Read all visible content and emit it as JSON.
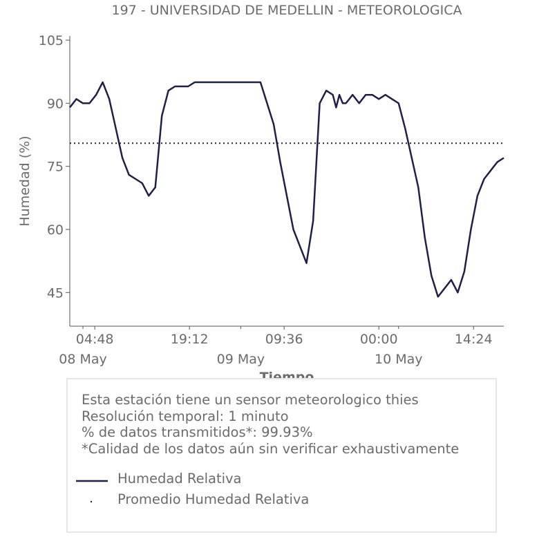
{
  "chart_data": {
    "type": "line",
    "title": "197 - UNIVERSIDAD DE MEDELLIN - METEOROLOGICA",
    "xlabel": "Tiempo",
    "ylabel": "Humedad (%)",
    "x_range": [
      "2024-05-08 01:00",
      "2024-05-10 19:00"
    ],
    "ylim": [
      37,
      106
    ],
    "yticks": [
      45,
      60,
      75,
      90,
      105
    ],
    "xticks": [
      {
        "time": "2024-05-08 04:48",
        "label": "04:48"
      },
      {
        "time": "2024-05-08 19:12",
        "label": "19:12"
      },
      {
        "time": "2024-05-09 09:36",
        "label": "09:36"
      },
      {
        "time": "2024-05-10 00:00",
        "label": "00:00"
      },
      {
        "time": "2024-05-10 14:24",
        "label": "14:24"
      }
    ],
    "date_ticks": [
      {
        "time": "2024-05-08 03:00",
        "label": "08 May"
      },
      {
        "time": "2024-05-09 03:00",
        "label": "09 May"
      },
      {
        "time": "2024-05-10 03:00",
        "label": "10 May"
      }
    ],
    "grid": false,
    "series": [
      {
        "name": "Humedad Relativa",
        "color": "#1f1f47",
        "style": "solid",
        "x": [
          "2024-05-08 01:00",
          "2024-05-08 02:00",
          "2024-05-08 03:00",
          "2024-05-08 04:00",
          "2024-05-08 05:00",
          "2024-05-08 06:00",
          "2024-05-08 07:00",
          "2024-05-08 08:00",
          "2024-05-08 09:00",
          "2024-05-08 10:00",
          "2024-05-08 11:00",
          "2024-05-08 12:00",
          "2024-05-08 13:00",
          "2024-05-08 14:00",
          "2024-05-08 15:00",
          "2024-05-08 16:00",
          "2024-05-08 17:00",
          "2024-05-08 18:00",
          "2024-05-08 19:00",
          "2024-05-08 20:00",
          "2024-05-08 22:00",
          "2024-05-09 00:00",
          "2024-05-09 02:00",
          "2024-05-09 04:00",
          "2024-05-09 06:00",
          "2024-05-09 08:00",
          "2024-05-09 09:00",
          "2024-05-09 10:00",
          "2024-05-09 11:00",
          "2024-05-09 12:00",
          "2024-05-09 13:00",
          "2024-05-09 14:00",
          "2024-05-09 15:00",
          "2024-05-09 16:00",
          "2024-05-09 17:00",
          "2024-05-09 17:30",
          "2024-05-09 18:00",
          "2024-05-09 18:30",
          "2024-05-09 19:00",
          "2024-05-09 20:00",
          "2024-05-09 21:00",
          "2024-05-09 22:00",
          "2024-05-09 23:00",
          "2024-05-10 00:00",
          "2024-05-10 01:00",
          "2024-05-10 02:00",
          "2024-05-10 03:00",
          "2024-05-10 04:00",
          "2024-05-10 05:00",
          "2024-05-10 06:00",
          "2024-05-10 07:00",
          "2024-05-10 08:00",
          "2024-05-10 09:00",
          "2024-05-10 10:00",
          "2024-05-10 11:00",
          "2024-05-10 12:00",
          "2024-05-10 13:00",
          "2024-05-10 14:00",
          "2024-05-10 15:00",
          "2024-05-10 16:00",
          "2024-05-10 17:00",
          "2024-05-10 18:00",
          "2024-05-10 19:00"
        ],
        "values": [
          89,
          91,
          90,
          90,
          92,
          95,
          91,
          84,
          77,
          73,
          72,
          71,
          68,
          70,
          87,
          93,
          94,
          94,
          94,
          95,
          95,
          95,
          95,
          95,
          95,
          85,
          76,
          68,
          60,
          56,
          52,
          62,
          90,
          93,
          92,
          89,
          92,
          90,
          90,
          92,
          90,
          92,
          92,
          91,
          92,
          91,
          90,
          84,
          77,
          70,
          58,
          49,
          44,
          46,
          48,
          45,
          50,
          60,
          68,
          72,
          74,
          76,
          77
        ]
      },
      {
        "name": "Promedio Humedad Relativa",
        "color": "#1f1f47",
        "style": "dotted",
        "value": 80.5
      }
    ]
  },
  "info": {
    "lines": [
      "Esta estación tiene un sensor meteorologico thies",
      "Resolución temporal: 1 minuto",
      "% de datos transmitidos*: 99.93%",
      "*Calidad de los datos aún sin verificar exhaustivamente"
    ]
  },
  "legend": {
    "items": [
      {
        "label": "Humedad Relativa"
      },
      {
        "label": "Promedio Humedad Relativa"
      }
    ]
  }
}
